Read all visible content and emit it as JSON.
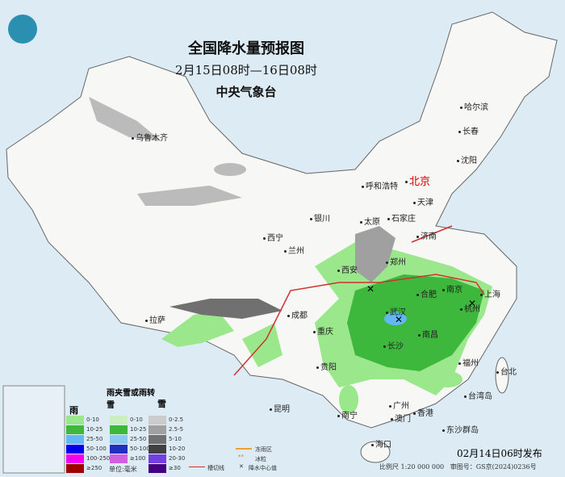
{
  "header": {
    "title": "全国降水量预报图",
    "period": "2月15日08时—16日08时",
    "issuer": "中央气象台"
  },
  "cities": [
    "乌鲁木齐",
    "哈尔滨",
    "长春",
    "沈阳",
    "北京",
    "天津",
    "呼和浩特",
    "石家庄",
    "太原",
    "济南",
    "银川",
    "西宁",
    "兰州",
    "郑州",
    "西安",
    "合肥",
    "南京",
    "上海",
    "武汉",
    "杭州",
    "拉萨",
    "成都",
    "重庆",
    "南昌",
    "长沙",
    "福州",
    "台北",
    "贵阳",
    "昆明",
    "南宁",
    "广州",
    "香港",
    "澳门",
    "海口",
    "东沙群岛",
    "台湾岛"
  ],
  "legend": {
    "rain": {
      "title": "雨",
      "items": [
        {
          "label": "0-10",
          "color": "#9be88c"
        },
        {
          "label": "10-25",
          "color": "#3db83d"
        },
        {
          "label": "25-50",
          "color": "#62b8f5"
        },
        {
          "label": "50-100",
          "color": "#0000f0"
        },
        {
          "label": "100-250",
          "color": "#f000f0"
        },
        {
          "label": "≥250",
          "color": "#a00000"
        }
      ]
    },
    "mixed": {
      "title": "雨夹雪或雨转雪",
      "items": [
        {
          "label": "0-10",
          "color": "#c8f0c0"
        },
        {
          "label": "10-25",
          "color": "#3db83d"
        },
        {
          "label": "25-50",
          "color": "#8cc8f0"
        },
        {
          "label": "50-100",
          "color": "#2030c0"
        },
        {
          "label": "≥100",
          "color": "#d060e0"
        }
      ]
    },
    "snow": {
      "title": "雪",
      "items": [
        {
          "label": "0-2.5",
          "color": "#cccccc"
        },
        {
          "label": "2.5-5",
          "color": "#a0a0a0"
        },
        {
          "label": "5-10",
          "color": "#707070"
        },
        {
          "label": "10-20",
          "color": "#404040"
        },
        {
          "label": "20-30",
          "color": "#7040e0"
        },
        {
          "label": "≥30",
          "color": "#400080"
        }
      ]
    },
    "symbols": {
      "freezing_rain_zone": "冻雨区",
      "sleet": "冰粒",
      "trough": "槽切线",
      "center": "降水中心值"
    },
    "unit": "单位:毫米"
  },
  "footer": {
    "issued": "02月14日06时发布",
    "scale": "比例尺 1:20 000 000",
    "approval": "审图号：GS京(2024)0236号"
  }
}
